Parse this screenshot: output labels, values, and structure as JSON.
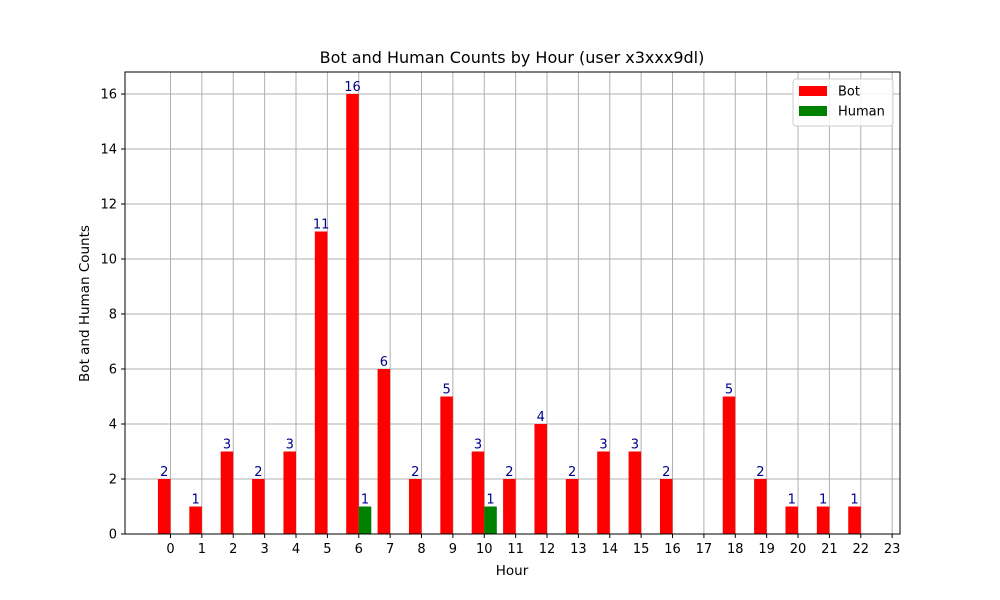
{
  "chart_data": {
    "type": "bar",
    "title": "Bot and Human Counts by Hour (user x3xxx9dl)",
    "xlabel": "Hour",
    "ylabel": "Bot and Human Counts",
    "ylim": [
      0,
      16.8
    ],
    "yticks": [
      0,
      2,
      4,
      6,
      8,
      10,
      12,
      14,
      16
    ],
    "xticks": [
      0,
      1,
      2,
      3,
      4,
      5,
      6,
      7,
      8,
      9,
      10,
      11,
      12,
      13,
      14,
      15,
      16,
      17,
      18,
      19,
      20,
      21,
      22,
      23
    ],
    "grid": true,
    "legend": "top-right",
    "series": [
      {
        "name": "Bot",
        "color": "#ff0000",
        "x": [
          0,
          1,
          2,
          3,
          4,
          5,
          6,
          7,
          8,
          9,
          10,
          11,
          12,
          13,
          14,
          15,
          16,
          18,
          19,
          20,
          21,
          22
        ],
        "values": [
          2,
          1,
          3,
          2,
          3,
          11,
          16,
          6,
          2,
          5,
          3,
          2,
          4,
          2,
          3,
          3,
          2,
          5,
          2,
          1,
          1,
          1
        ]
      },
      {
        "name": "Human",
        "color": "#008000",
        "x": [
          6,
          10
        ],
        "values": [
          1,
          1
        ]
      }
    ],
    "label_color": "#00008b"
  }
}
